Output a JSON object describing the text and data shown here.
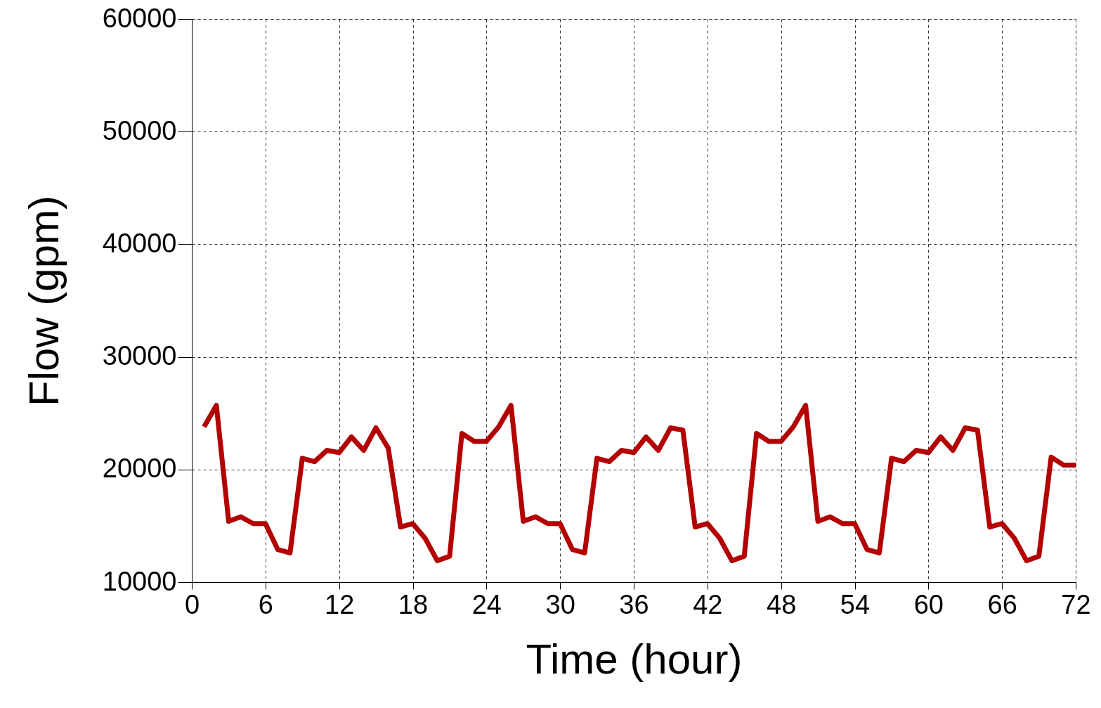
{
  "chart_data": {
    "type": "line",
    "xlabel": "Time (hour)",
    "ylabel": "Flow (gpm)",
    "x": [
      1,
      2,
      3,
      4,
      5,
      6,
      7,
      8,
      9,
      10,
      11,
      12,
      13,
      14,
      15,
      16,
      17,
      18,
      19,
      20,
      21,
      22,
      23,
      24,
      25,
      26,
      27,
      28,
      29,
      30,
      31,
      32,
      33,
      34,
      35,
      36,
      37,
      38,
      39,
      40,
      41,
      42,
      43,
      44,
      45,
      46,
      47,
      48,
      49,
      50,
      51,
      52,
      53,
      54,
      55,
      56,
      57,
      58,
      59,
      60,
      61,
      62,
      63,
      64,
      65,
      66,
      67,
      68,
      69,
      70,
      71,
      72
    ],
    "series": [
      {
        "color": "#b30000",
        "values": [
          23800,
          25700,
          15400,
          15800,
          15200,
          15200,
          12900,
          12600,
          21000,
          20700,
          21700,
          21500,
          22900,
          21700,
          23700,
          21900,
          14900,
          15200,
          13900,
          11900,
          12300,
          23200,
          22500,
          22500,
          23800,
          25700,
          15400,
          15800,
          15200,
          15200,
          12900,
          12600,
          21000,
          20700,
          21700,
          21500,
          22900,
          21700,
          23700,
          23500,
          14900,
          15200,
          13900,
          11900,
          12300,
          23200,
          22500,
          22500,
          23800,
          25700,
          15400,
          15800,
          15200,
          15200,
          12900,
          12600,
          21000,
          20700,
          21700,
          21500,
          22900,
          21700,
          23700,
          23500,
          14900,
          15200,
          13900,
          11900,
          12300,
          21100,
          20400,
          20400
        ]
      }
    ],
    "xlim": [
      0,
      72
    ],
    "xticks": [
      0,
      6,
      12,
      18,
      24,
      30,
      36,
      42,
      48,
      54,
      60,
      66,
      72
    ],
    "ylim": [
      10000,
      60000
    ],
    "yticks": [
      10000,
      20000,
      30000,
      40000,
      50000,
      60000
    ],
    "grid": true,
    "line_style": "solid",
    "marker": "none",
    "legend": false
  }
}
